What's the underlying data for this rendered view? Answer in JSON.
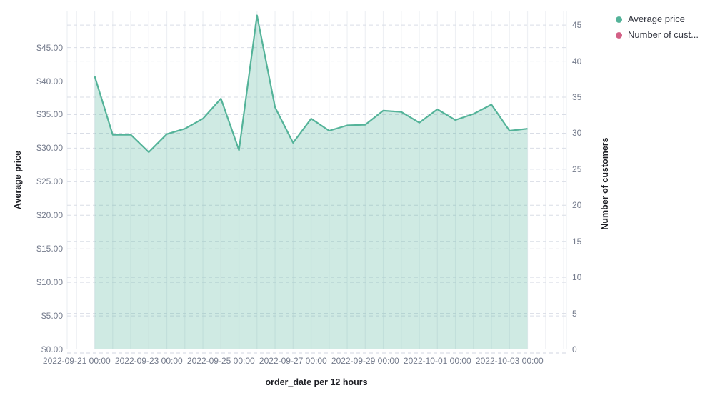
{
  "legend": {
    "items": [
      {
        "label": "Average price",
        "color": "#54B399"
      },
      {
        "label": "Number of cust...",
        "color": "#D36086"
      }
    ]
  },
  "axes": {
    "left": {
      "title": "Average price",
      "tick_labels": [
        "$0.00",
        "$5.00",
        "$10.00",
        "$15.00",
        "$20.00",
        "$25.00",
        "$30.00",
        "$35.00",
        "$40.00",
        "$45.00"
      ],
      "tick_values": [
        0,
        5,
        10,
        15,
        20,
        25,
        30,
        35,
        40,
        45
      ]
    },
    "right": {
      "title": "Number of customers",
      "tick_labels": [
        "0",
        "5",
        "10",
        "15",
        "20",
        "25",
        "30",
        "35",
        "40",
        "45"
      ],
      "tick_values": [
        0,
        5,
        10,
        15,
        20,
        25,
        30,
        35,
        40,
        45
      ]
    },
    "x": {
      "title": "order_date per 12 hours",
      "tick_labels": [
        "2022-09-21 00:00",
        "2022-09-23 00:00",
        "2022-09-25 00:00",
        "2022-09-27 00:00",
        "2022-09-29 00:00",
        "2022-10-01 00:00",
        "2022-10-03 00:00"
      ]
    }
  },
  "chart_data": {
    "type": "area",
    "title": "",
    "xlabel": "order_date per 12 hours",
    "ylabel_left": "Average price",
    "ylabel_right": "Number of customers",
    "ylim_left": [
      0,
      50.5
    ],
    "ylim_right": [
      0,
      47
    ],
    "grid": true,
    "legend_position": "top-right",
    "x": [
      "2022-09-21 12:00",
      "2022-09-22 00:00",
      "2022-09-22 12:00",
      "2022-09-23 00:00",
      "2022-09-23 12:00",
      "2022-09-24 00:00",
      "2022-09-24 12:00",
      "2022-09-25 00:00",
      "2022-09-25 12:00",
      "2022-09-26 00:00",
      "2022-09-26 12:00",
      "2022-09-27 00:00",
      "2022-09-27 12:00",
      "2022-09-28 00:00",
      "2022-09-28 12:00",
      "2022-09-29 00:00",
      "2022-09-29 12:00",
      "2022-09-30 00:00",
      "2022-09-30 12:00",
      "2022-10-01 00:00",
      "2022-10-01 12:00",
      "2022-10-02 00:00",
      "2022-10-02 12:00",
      "2022-10-03 00:00",
      "2022-10-03 12:00"
    ],
    "series": [
      {
        "name": "Average price",
        "axis": "left",
        "color": "#54B399",
        "fill_opacity": 0.28,
        "values": [
          40.7,
          32.0,
          32.0,
          29.4,
          32.1,
          32.9,
          34.4,
          37.4,
          29.7,
          49.8,
          36.1,
          30.8,
          34.4,
          32.6,
          33.4,
          33.5,
          35.6,
          35.4,
          33.8,
          35.8,
          34.2,
          35.1,
          36.5,
          32.6,
          32.9
        ]
      },
      {
        "name": "Number of customers",
        "axis": "right",
        "color": "#D36086",
        "values": []
      }
    ],
    "grid_colors": {
      "vertical_solid": "#eef0f4",
      "horizontal_dashed": "#d9dde6",
      "plot_edge": "#e9ecf2"
    }
  }
}
